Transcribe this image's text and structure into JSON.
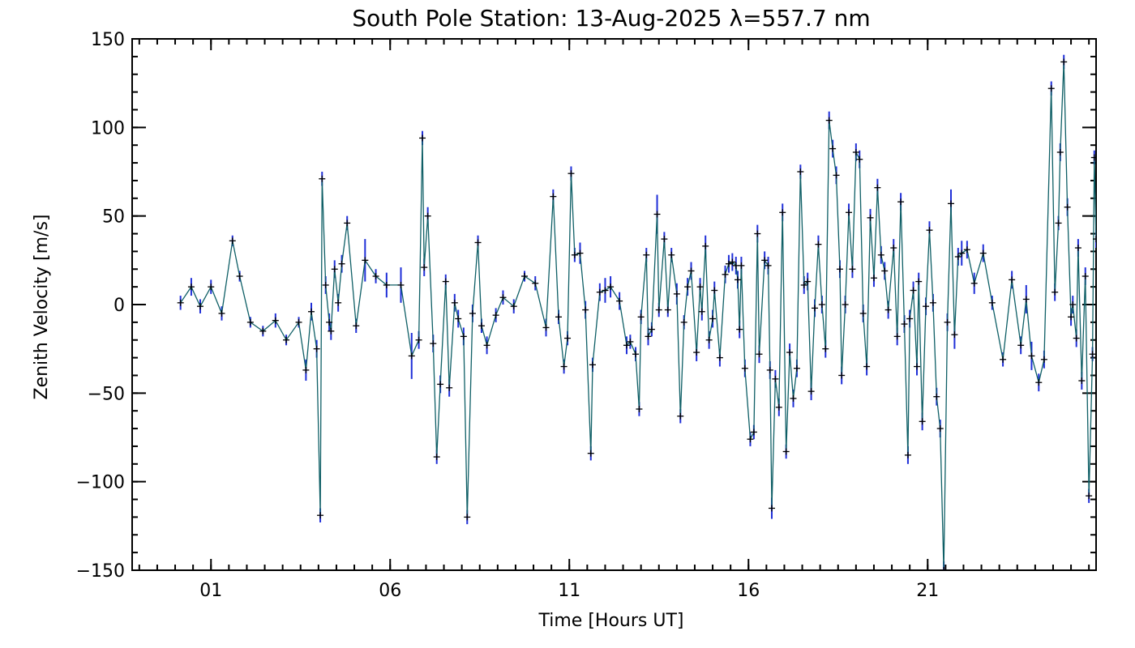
{
  "chart_data": {
    "type": "line",
    "title": "South Pole Station: 13-Aug-2025 λ=557.7 nm",
    "xlabel": "Time [Hours UT]",
    "ylabel": "Zenith Velocity [m/s]",
    "xlim": [
      -1.2,
      25.7
    ],
    "ylim": [
      -150,
      150
    ],
    "x_ticks": [
      1,
      6,
      11,
      16,
      21
    ],
    "x_tick_labels": [
      "01",
      "06",
      "11",
      "16",
      "21"
    ],
    "y_ticks": [
      -150,
      -100,
      -50,
      0,
      50,
      100,
      150
    ],
    "y_tick_labels": [
      "-150",
      "-100",
      "-50",
      "0",
      "50",
      "100",
      "150"
    ],
    "colors": {
      "line": "#0f5f66",
      "error_bar": "#1f2fd8",
      "marker": "#000000",
      "axis": "#000000"
    },
    "series": [
      {
        "name": "Zenith Velocity",
        "points": [
          [
            0.15,
            1,
            4
          ],
          [
            0.45,
            10,
            5
          ],
          [
            0.7,
            -1,
            4
          ],
          [
            1.0,
            10,
            4
          ],
          [
            1.3,
            -5,
            4
          ],
          [
            1.6,
            36,
            3
          ],
          [
            1.8,
            16,
            3
          ],
          [
            2.1,
            -10,
            3
          ],
          [
            2.45,
            -15,
            3
          ],
          [
            2.8,
            -9,
            4
          ],
          [
            3.1,
            -20,
            3
          ],
          [
            3.45,
            -10,
            3
          ],
          [
            3.65,
            -37,
            6
          ],
          [
            3.8,
            -4,
            5
          ],
          [
            3.95,
            -25,
            5
          ],
          [
            4.05,
            -119,
            4
          ],
          [
            4.1,
            71,
            4
          ],
          [
            4.2,
            11,
            5
          ],
          [
            4.3,
            -10,
            5
          ],
          [
            4.35,
            -15,
            5
          ],
          [
            4.45,
            20,
            5
          ],
          [
            4.55,
            1,
            5
          ],
          [
            4.65,
            23,
            5
          ],
          [
            4.8,
            46,
            4
          ],
          [
            5.05,
            -12,
            4
          ],
          [
            5.3,
            25,
            12
          ],
          [
            5.6,
            16,
            4
          ],
          [
            5.9,
            11,
            7
          ],
          [
            6.3,
            11,
            10
          ],
          [
            6.6,
            -29,
            13
          ],
          [
            6.8,
            -20,
            5
          ],
          [
            6.9,
            94,
            4
          ],
          [
            6.95,
            21,
            5
          ],
          [
            7.05,
            50,
            5
          ],
          [
            7.2,
            -22,
            5
          ],
          [
            7.3,
            -86,
            4
          ],
          [
            7.4,
            -45,
            5
          ],
          [
            7.55,
            13,
            4
          ],
          [
            7.65,
            -47,
            5
          ],
          [
            7.8,
            1,
            5
          ],
          [
            7.9,
            -8,
            5
          ],
          [
            8.05,
            -18,
            5
          ],
          [
            8.15,
            -120,
            4
          ],
          [
            8.3,
            -5,
            5
          ],
          [
            8.45,
            35,
            4
          ],
          [
            8.55,
            -12,
            4
          ],
          [
            8.7,
            -23,
            5
          ],
          [
            8.95,
            -6,
            4
          ],
          [
            9.15,
            4,
            4
          ],
          [
            9.45,
            -1,
            4
          ],
          [
            9.75,
            16,
            3
          ],
          [
            10.05,
            12,
            4
          ],
          [
            10.35,
            -13,
            5
          ],
          [
            10.55,
            61,
            4
          ],
          [
            10.7,
            -7,
            4
          ],
          [
            10.85,
            -35,
            4
          ],
          [
            10.95,
            -19,
            4
          ],
          [
            11.05,
            74,
            4
          ],
          [
            11.15,
            28,
            4
          ],
          [
            11.3,
            29,
            6
          ],
          [
            11.45,
            -3,
            5
          ],
          [
            11.6,
            -84,
            4
          ],
          [
            11.65,
            -34,
            4
          ],
          [
            11.85,
            7,
            5
          ],
          [
            12.0,
            8,
            7
          ],
          [
            12.15,
            10,
            6
          ],
          [
            12.4,
            2,
            5
          ],
          [
            12.6,
            -23,
            5
          ],
          [
            12.7,
            -21,
            4
          ],
          [
            12.85,
            -28,
            4
          ],
          [
            12.95,
            -59,
            4
          ],
          [
            13.0,
            -7,
            4
          ],
          [
            13.15,
            28,
            4
          ],
          [
            13.2,
            -18,
            5
          ],
          [
            13.3,
            -14,
            4
          ],
          [
            13.45,
            51,
            11
          ],
          [
            13.5,
            -3,
            4
          ],
          [
            13.65,
            37,
            4
          ],
          [
            13.75,
            -3,
            4
          ],
          [
            13.85,
            28,
            4
          ],
          [
            14.0,
            6,
            6
          ],
          [
            14.1,
            -63,
            4
          ],
          [
            14.2,
            -10,
            4
          ],
          [
            14.3,
            10,
            5
          ],
          [
            14.4,
            19,
            5
          ],
          [
            14.55,
            -27,
            5
          ],
          [
            14.65,
            10,
            5
          ],
          [
            14.7,
            -4,
            5
          ],
          [
            14.8,
            33,
            6
          ],
          [
            14.9,
            -20,
            5
          ],
          [
            15.0,
            -8,
            5
          ],
          [
            15.05,
            8,
            5
          ],
          [
            15.2,
            -30,
            5
          ],
          [
            15.35,
            17,
            5
          ],
          [
            15.45,
            23,
            5
          ],
          [
            15.55,
            24,
            5
          ],
          [
            15.65,
            22,
            5
          ],
          [
            15.7,
            14,
            5
          ],
          [
            15.75,
            -14,
            5
          ],
          [
            15.8,
            22,
            5
          ],
          [
            15.9,
            -36,
            5
          ],
          [
            16.05,
            -76,
            4
          ],
          [
            16.15,
            -72,
            4
          ],
          [
            16.25,
            40,
            5
          ],
          [
            16.3,
            -28,
            5
          ],
          [
            16.45,
            25,
            5
          ],
          [
            16.55,
            22,
            5
          ],
          [
            16.6,
            -37,
            5
          ],
          [
            16.65,
            -115,
            6
          ],
          [
            16.75,
            -42,
            5
          ],
          [
            16.85,
            -58,
            5
          ],
          [
            16.95,
            52,
            5
          ],
          [
            17.05,
            -83,
            4
          ],
          [
            17.15,
            -27,
            5
          ],
          [
            17.25,
            -53,
            5
          ],
          [
            17.35,
            -36,
            5
          ],
          [
            17.45,
            75,
            4
          ],
          [
            17.55,
            11,
            5
          ],
          [
            17.65,
            13,
            5
          ],
          [
            17.75,
            -49,
            5
          ],
          [
            17.85,
            -2,
            5
          ],
          [
            17.95,
            34,
            5
          ],
          [
            18.05,
            0,
            5
          ],
          [
            18.15,
            -25,
            5
          ],
          [
            18.25,
            104,
            5
          ],
          [
            18.35,
            88,
            5
          ],
          [
            18.45,
            73,
            5
          ],
          [
            18.55,
            20,
            5
          ],
          [
            18.6,
            -40,
            5
          ],
          [
            18.7,
            0,
            5
          ],
          [
            18.8,
            52,
            5
          ],
          [
            18.9,
            20,
            5
          ],
          [
            19.0,
            86,
            5
          ],
          [
            19.1,
            82,
            5
          ],
          [
            19.2,
            -5,
            5
          ],
          [
            19.3,
            -35,
            5
          ],
          [
            19.4,
            49,
            5
          ],
          [
            19.5,
            15,
            5
          ],
          [
            19.6,
            66,
            5
          ],
          [
            19.7,
            28,
            5
          ],
          [
            19.8,
            19,
            5
          ],
          [
            19.9,
            -3,
            5
          ],
          [
            20.05,
            32,
            5
          ],
          [
            20.15,
            -18,
            5
          ],
          [
            20.25,
            58,
            5
          ],
          [
            20.35,
            -11,
            5
          ],
          [
            20.45,
            -85,
            5
          ],
          [
            20.5,
            -8,
            5
          ],
          [
            20.6,
            8,
            5
          ],
          [
            20.7,
            -35,
            5
          ],
          [
            20.75,
            13,
            5
          ],
          [
            20.85,
            -66,
            5
          ],
          [
            20.95,
            -1,
            5
          ],
          [
            21.05,
            42,
            5
          ],
          [
            21.15,
            1,
            5
          ],
          [
            21.25,
            -52,
            5
          ],
          [
            21.35,
            -70,
            5
          ],
          [
            21.45,
            -150,
            5
          ],
          [
            21.55,
            -10,
            5
          ],
          [
            21.65,
            57,
            8
          ],
          [
            21.75,
            -17,
            8
          ],
          [
            21.85,
            27,
            5
          ],
          [
            21.95,
            29,
            7
          ],
          [
            22.1,
            31,
            5
          ],
          [
            22.3,
            12,
            6
          ],
          [
            22.55,
            29,
            5
          ],
          [
            22.8,
            1,
            4
          ],
          [
            23.1,
            -31,
            4
          ],
          [
            23.35,
            14,
            5
          ],
          [
            23.6,
            -23,
            5
          ],
          [
            23.75,
            3,
            8
          ],
          [
            23.9,
            -29,
            8
          ],
          [
            24.1,
            -44,
            5
          ],
          [
            24.25,
            -31,
            5
          ],
          [
            24.45,
            122,
            4
          ],
          [
            24.55,
            7,
            5
          ],
          [
            24.65,
            46,
            4
          ],
          [
            24.7,
            86,
            5
          ],
          [
            24.8,
            137,
            4
          ],
          [
            24.9,
            55,
            5
          ],
          [
            25.0,
            -7,
            5
          ],
          [
            25.05,
            0,
            5
          ],
          [
            25.15,
            -19,
            5
          ],
          [
            25.2,
            32,
            5
          ],
          [
            25.3,
            -43,
            5
          ],
          [
            25.4,
            16,
            5
          ],
          [
            25.5,
            -108,
            4
          ],
          [
            25.6,
            -28,
            4
          ],
          [
            25.65,
            83,
            4
          ],
          [
            25.7,
            37,
            5
          ]
        ]
      }
    ]
  }
}
